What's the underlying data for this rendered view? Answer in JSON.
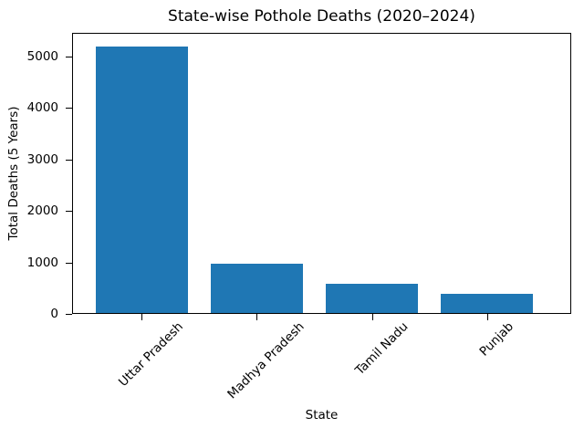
{
  "chart_data": {
    "type": "bar",
    "title": "State-wise Pothole Deaths (2020–2024)",
    "xlabel": "State",
    "ylabel": "Total Deaths (5 Years)",
    "categories": [
      "Uttar Pradesh",
      "Madhya Pradesh",
      "Tamil Nadu",
      "Punjab"
    ],
    "values": [
      5175,
      950,
      570,
      365
    ],
    "ylim": [
      0,
      5460
    ],
    "yticks": [
      0,
      1000,
      2000,
      3000,
      4000,
      5000
    ],
    "bar_color": "#1f77b4",
    "axis_color": "#000000",
    "text_color": "#000000",
    "background_color": "#ffffff",
    "grid": false,
    "legend": false,
    "x_tick_rotation": 45
  }
}
